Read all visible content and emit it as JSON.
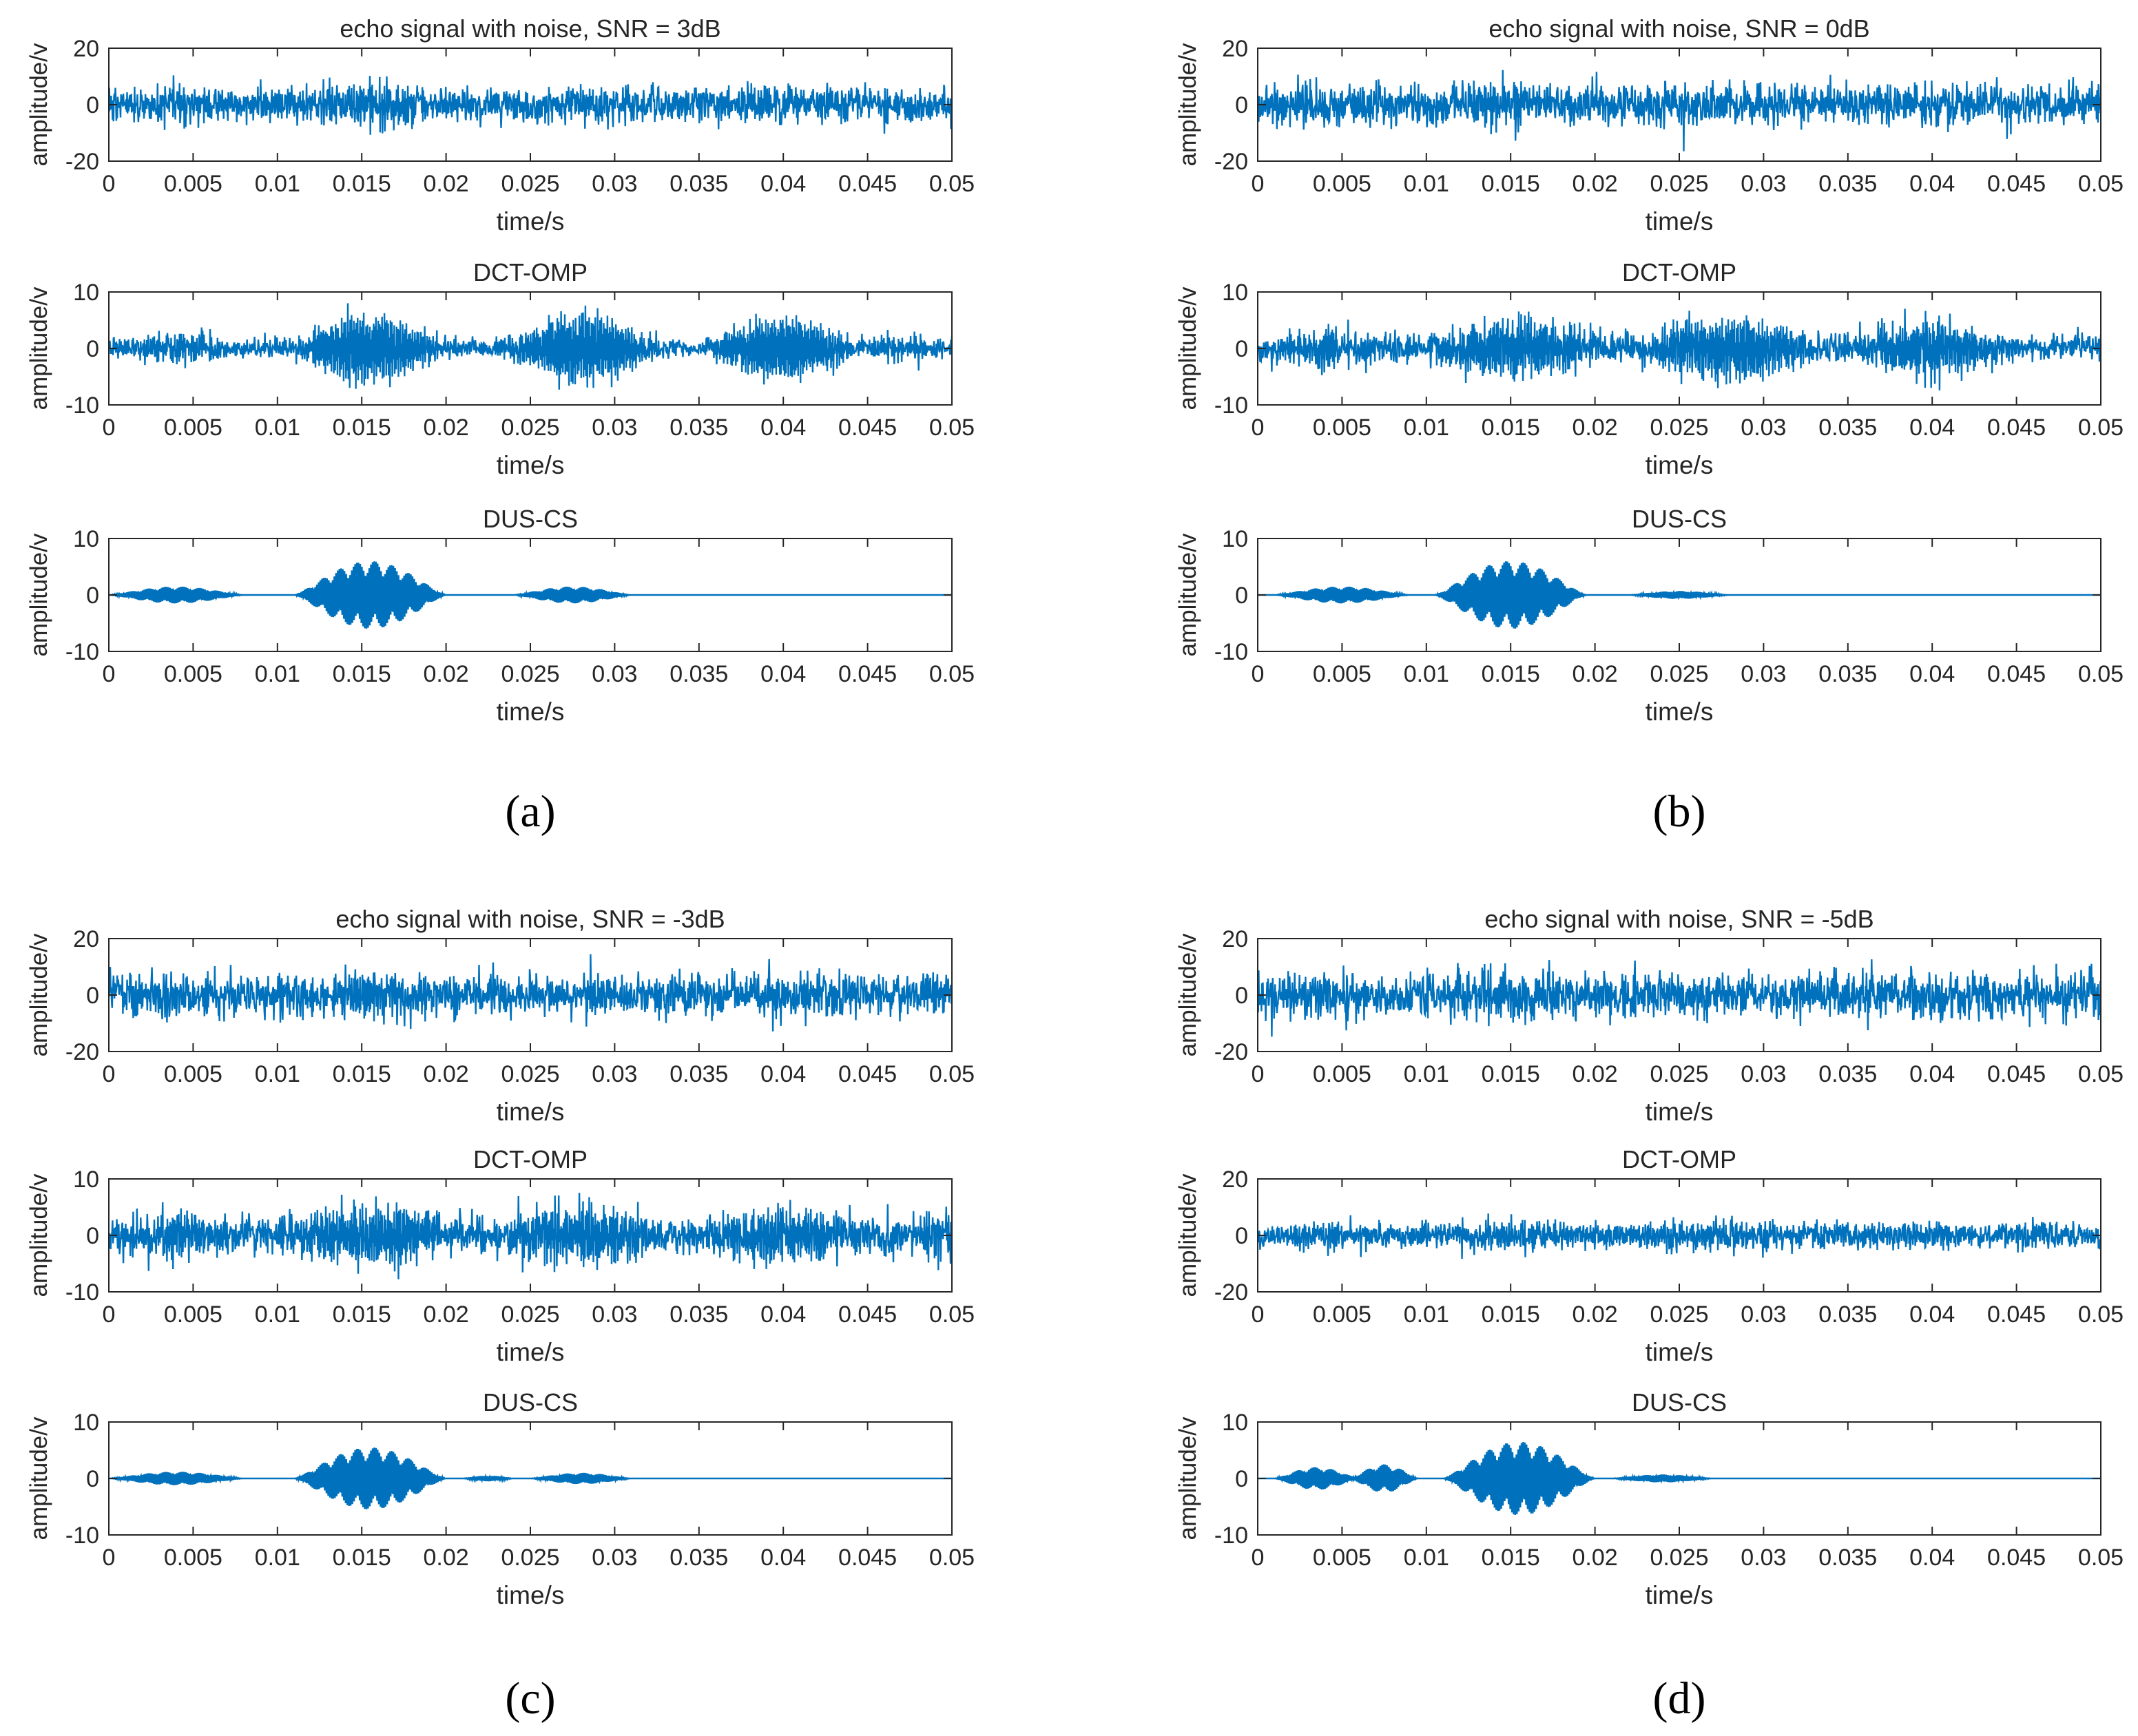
{
  "figure": {
    "colors": {
      "signal": "#0072BD",
      "axis": "#262626",
      "background": "#ffffff"
    },
    "common_axes": {
      "xlabel": "time/s",
      "ylabel": "amplitude/v",
      "xlim": [
        0,
        0.05
      ],
      "xticks": [
        0,
        0.005,
        0.01,
        0.015,
        0.02,
        0.025,
        0.03,
        0.035,
        0.04,
        0.045,
        0.05
      ],
      "xtick_labels": [
        "0",
        "0.005",
        "0.01",
        "0.015",
        "0.02",
        "0.025",
        "0.03",
        "0.035",
        "0.04",
        "0.045",
        "0.05"
      ]
    }
  },
  "chart_data": [
    {
      "panel": "(a)",
      "subplots": [
        {
          "type": "line",
          "title": "echo signal with noise, SNR = 3dB",
          "xlabel": "time/s",
          "ylabel": "amplitude/v",
          "ylim": [
            -20,
            20
          ],
          "yticks": [
            -20,
            0,
            20
          ],
          "ytick_labels": [
            "-20",
            "0",
            "20"
          ],
          "kind": "noisy",
          "noise_amp": 3.2,
          "bursts": [
            {
              "center": 0.004,
              "width": 0.008,
              "amp": 2
            },
            {
              "center": 0.0155,
              "width": 0.009,
              "amp": 5
            },
            {
              "center": 0.028,
              "width": 0.008,
              "amp": 2
            }
          ]
        },
        {
          "type": "line",
          "title": "DCT-OMP",
          "xlabel": "time/s",
          "ylabel": "amplitude/v",
          "ylim": [
            -10,
            10
          ],
          "yticks": [
            -10,
            0,
            10
          ],
          "ytick_labels": [
            "-10",
            "0",
            "10"
          ],
          "kind": "noisy",
          "noise_amp": 0.8,
          "bursts": [
            {
              "center": 0.004,
              "width": 0.008,
              "amp": 2
            },
            {
              "center": 0.0155,
              "width": 0.01,
              "amp": 6.5
            },
            {
              "center": 0.028,
              "width": 0.01,
              "amp": 6.5
            },
            {
              "center": 0.04,
              "width": 0.01,
              "amp": 6
            },
            {
              "center": 0.047,
              "width": 0.006,
              "amp": 1.5
            }
          ]
        },
        {
          "type": "line",
          "title": "DUS-CS",
          "xlabel": "time/s",
          "ylabel": "amplitude/v",
          "ylim": [
            -10,
            10
          ],
          "yticks": [
            -10,
            0,
            10
          ],
          "ytick_labels": [
            "-10",
            "0",
            "10"
          ],
          "kind": "clean",
          "bursts": [
            {
              "center": 0.004,
              "width": 0.008,
              "amp": 1.5
            },
            {
              "center": 0.0155,
              "width": 0.009,
              "amp": 6
            },
            {
              "center": 0.0275,
              "width": 0.007,
              "amp": 1.5
            }
          ]
        }
      ]
    },
    {
      "panel": "(b)",
      "subplots": [
        {
          "type": "line",
          "title": "echo signal with noise, SNR = 0dB",
          "xlabel": "time/s",
          "ylabel": "amplitude/v",
          "ylim": [
            -20,
            20
          ],
          "yticks": [
            -20,
            0,
            20
          ],
          "ytick_labels": [
            "-20",
            "0",
            "20"
          ],
          "kind": "noisy",
          "noise_amp": 3.6,
          "bursts": [
            {
              "center": 0.005,
              "width": 0.008,
              "amp": 2
            },
            {
              "center": 0.015,
              "width": 0.009,
              "amp": 5
            },
            {
              "center": 0.025,
              "width": 0.006,
              "amp": 1
            }
          ]
        },
        {
          "type": "line",
          "title": "DCT-OMP",
          "xlabel": "time/s",
          "ylabel": "amplitude/v",
          "ylim": [
            -10,
            10
          ],
          "yticks": [
            -10,
            0,
            10
          ],
          "ytick_labels": [
            "-10",
            "0",
            "10"
          ],
          "kind": "noisy",
          "noise_amp": 1.3,
          "bursts": [
            {
              "center": 0.004,
              "width": 0.008,
              "amp": 2.5
            },
            {
              "center": 0.0155,
              "width": 0.012,
              "amp": 5
            },
            {
              "center": 0.028,
              "width": 0.012,
              "amp": 6
            },
            {
              "center": 0.04,
              "width": 0.01,
              "amp": 5
            }
          ]
        },
        {
          "type": "line",
          "title": "DUS-CS",
          "xlabel": "time/s",
          "ylabel": "amplitude/v",
          "ylim": [
            -10,
            10
          ],
          "yticks": [
            -10,
            0,
            10
          ],
          "ytick_labels": [
            "-10",
            "0",
            "10"
          ],
          "kind": "clean",
          "bursts": [
            {
              "center": 0.005,
              "width": 0.008,
              "amp": 1.5
            },
            {
              "center": 0.015,
              "width": 0.009,
              "amp": 6
            },
            {
              "center": 0.025,
              "width": 0.006,
              "amp": 0.7
            }
          ]
        }
      ]
    },
    {
      "panel": "(c)",
      "subplots": [
        {
          "type": "line",
          "title": "echo signal with noise, SNR = -3dB",
          "xlabel": "time/s",
          "ylabel": "amplitude/v",
          "ylim": [
            -20,
            20
          ],
          "yticks": [
            -20,
            0,
            20
          ],
          "ytick_labels": [
            "-20",
            "0",
            "20"
          ],
          "kind": "noisy",
          "noise_amp": 3.8,
          "bursts": [
            {
              "center": 0.004,
              "width": 0.008,
              "amp": 2
            },
            {
              "center": 0.0155,
              "width": 0.009,
              "amp": 5
            },
            {
              "center": 0.028,
              "width": 0.008,
              "amp": 1.5
            }
          ]
        },
        {
          "type": "line",
          "title": "DCT-OMP",
          "xlabel": "time/s",
          "ylabel": "amplitude/v",
          "ylim": [
            -10,
            10
          ],
          "yticks": [
            -10,
            0,
            10
          ],
          "ytick_labels": [
            "-10",
            "0",
            "10"
          ],
          "kind": "noisy",
          "noise_amp": 1.6,
          "bursts": [
            {
              "center": 0.004,
              "width": 0.008,
              "amp": 3
            },
            {
              "center": 0.0155,
              "width": 0.012,
              "amp": 5
            },
            {
              "center": 0.028,
              "width": 0.012,
              "amp": 5
            },
            {
              "center": 0.04,
              "width": 0.012,
              "amp": 4
            },
            {
              "center": 0.049,
              "width": 0.004,
              "amp": 3
            }
          ]
        },
        {
          "type": "line",
          "title": "DUS-CS",
          "xlabel": "time/s",
          "ylabel": "amplitude/v",
          "ylim": [
            -10,
            10
          ],
          "yticks": [
            -10,
            0,
            10
          ],
          "ytick_labels": [
            "-10",
            "0",
            "10"
          ],
          "kind": "clean",
          "bursts": [
            {
              "center": 0.004,
              "width": 0.008,
              "amp": 1.2
            },
            {
              "center": 0.0155,
              "width": 0.009,
              "amp": 5.5
            },
            {
              "center": 0.0225,
              "width": 0.003,
              "amp": 0.5
            },
            {
              "center": 0.028,
              "width": 0.006,
              "amp": 1
            }
          ]
        }
      ]
    },
    {
      "panel": "(d)",
      "subplots": [
        {
          "type": "line",
          "title": "echo signal with noise, SNR = -5dB",
          "xlabel": "time/s",
          "ylabel": "amplitude/v",
          "ylim": [
            -20,
            20
          ],
          "yticks": [
            -20,
            0,
            20
          ],
          "ytick_labels": [
            "-20",
            "0",
            "20"
          ],
          "kind": "noisy",
          "noise_amp": 4.0,
          "bursts": [
            {
              "center": 0.004,
              "width": 0.008,
              "amp": 2
            },
            {
              "center": 0.0155,
              "width": 0.009,
              "amp": 5
            },
            {
              "center": 0.025,
              "width": 0.006,
              "amp": 1
            }
          ]
        },
        {
          "type": "line",
          "title": "DCT-OMP",
          "xlabel": "time/s",
          "ylabel": "amplitude/v",
          "ylim": [
            -20,
            20
          ],
          "yticks": [
            -20,
            0,
            20
          ],
          "ytick_labels": [
            "-20",
            "0",
            "20"
          ],
          "kind": "noisy",
          "noise_amp": 2.2,
          "bursts": [
            {
              "center": 0.004,
              "width": 0.008,
              "amp": 2
            },
            {
              "center": 0.0155,
              "width": 0.012,
              "amp": 3.5
            },
            {
              "center": 0.026,
              "width": 0.012,
              "amp": 3.5
            },
            {
              "center": 0.038,
              "width": 0.012,
              "amp": 3
            },
            {
              "center": 0.045,
              "width": 0.006,
              "amp": 2
            }
          ]
        },
        {
          "type": "line",
          "title": "DUS-CS",
          "xlabel": "time/s",
          "ylabel": "amplitude/v",
          "ylim": [
            -10,
            10
          ],
          "yticks": [
            -10,
            0,
            10
          ],
          "ytick_labels": [
            "-10",
            "0",
            "10"
          ],
          "kind": "clean",
          "bursts": [
            {
              "center": 0.0035,
              "width": 0.005,
              "amp": 2
            },
            {
              "center": 0.0075,
              "width": 0.004,
              "amp": 2.5
            },
            {
              "center": 0.0155,
              "width": 0.009,
              "amp": 6.5
            },
            {
              "center": 0.024,
              "width": 0.006,
              "amp": 0.7
            }
          ]
        }
      ]
    }
  ]
}
